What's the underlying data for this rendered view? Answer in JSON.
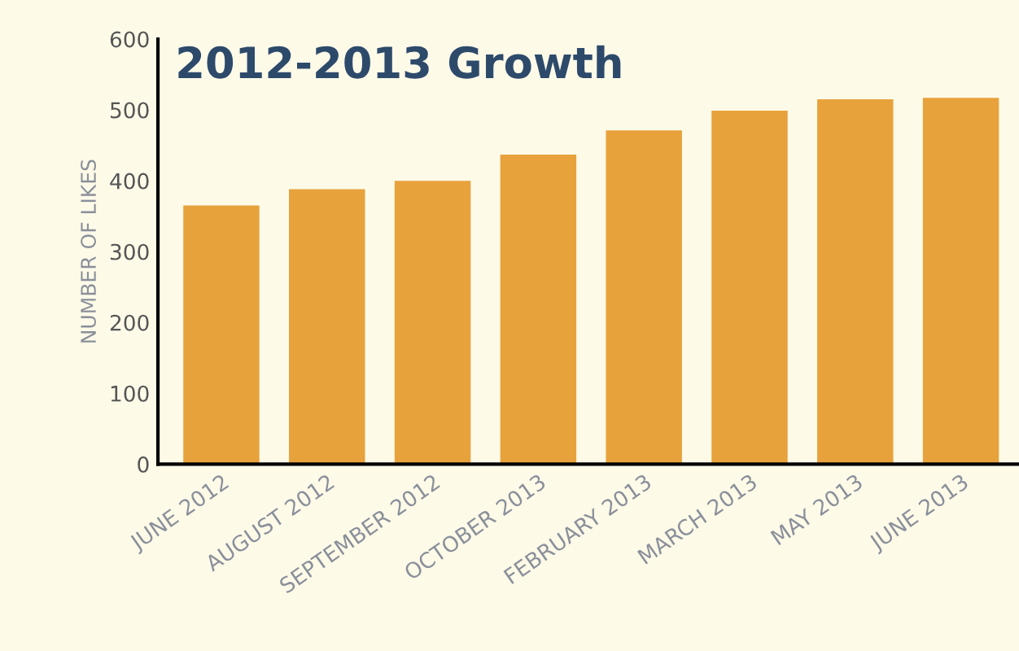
{
  "chart_data": {
    "type": "bar",
    "title": "2012-2013 Growth",
    "ylabel": "NUMBER OF LIKES",
    "categories": [
      "JUNE 2012",
      "AUGUST 2012",
      "SEPTEMBER 2012",
      "OCTOBER 2013",
      "FEBRUARY 2013",
      "MARCH 2013",
      "MAY 2013",
      "JUNE 2013"
    ],
    "values": [
      365,
      388,
      400,
      437,
      471,
      499,
      515,
      517
    ],
    "color": "#e8a23c",
    "ylim": [
      0,
      600
    ],
    "yticks": [
      0,
      100,
      200,
      300,
      400,
      500,
      600
    ],
    "grid": false,
    "legend": false
  }
}
